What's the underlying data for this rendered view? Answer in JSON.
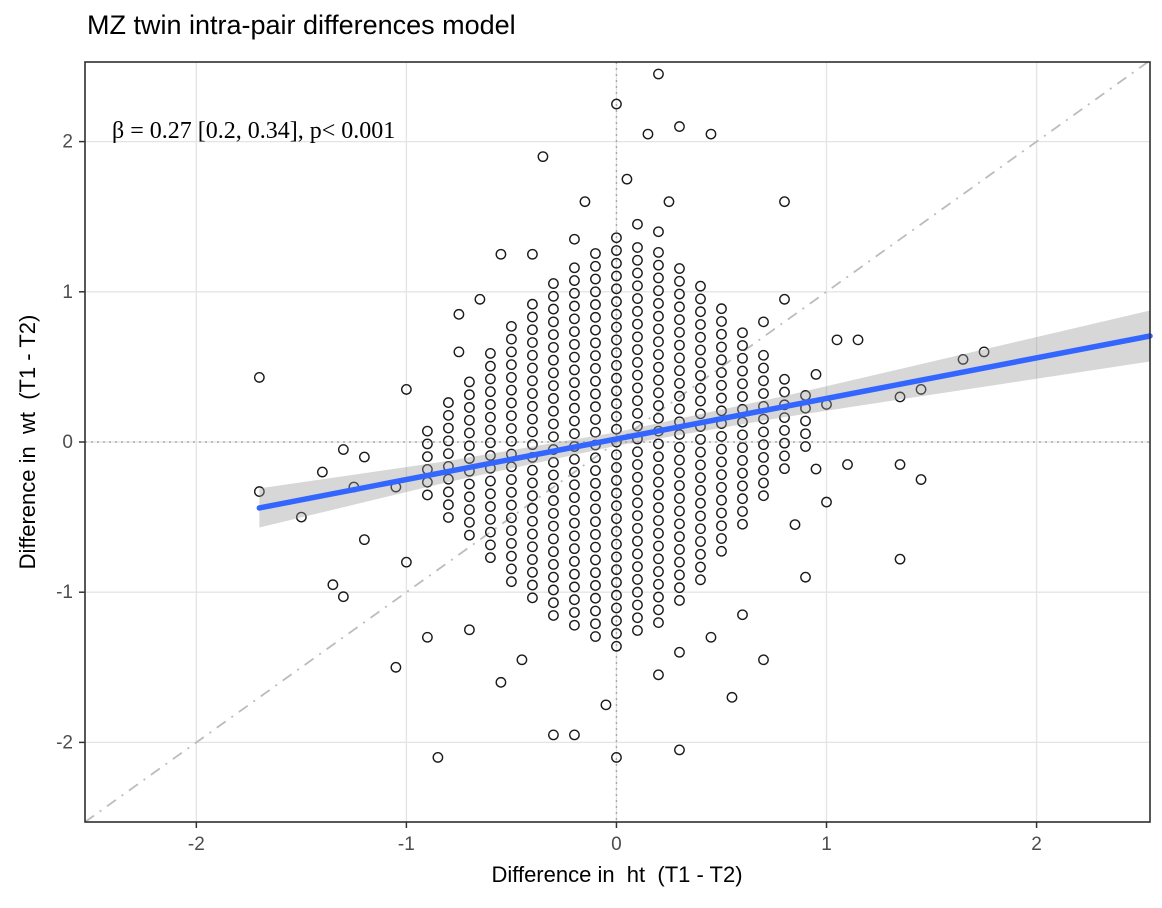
{
  "title": "MZ twin intra-pair differences model",
  "annotation": "β = 0.27 [0.2, 0.34], p< 0.001",
  "colors": {
    "regression_line": "#3366FF",
    "ribbon": "rgba(150,150,150,0.38)",
    "point_stroke": "#1a1a1a",
    "grid": "#e4e4e4",
    "zero_line": "#a9a9a9",
    "identity_line": "#bcbcbc",
    "panel_border": "#2f2f2f",
    "tick_color": "#333333",
    "tick_label": "#4d4d4d",
    "text": "#000000"
  },
  "chart_data": {
    "type": "scatter",
    "title": "MZ twin intra-pair differences model",
    "xlabel": "Difference in  ht  (T1 - T2)",
    "ylabel": "Difference in  wt  (T1 - T2)",
    "xlim": [
      -2.53,
      2.54
    ],
    "ylim": [
      -2.53,
      2.53
    ],
    "x_ticks": [
      -2,
      -1,
      0,
      1,
      2
    ],
    "y_ticks": [
      -2,
      -1,
      0,
      1,
      2
    ],
    "grid": true,
    "legend": "none",
    "annotation": "β = 0.27 [0.2, 0.34], p< 0.001",
    "zero_lines": {
      "style": "dotted",
      "x": 0,
      "y": 0
    },
    "identity_line": {
      "style": "dash-dot",
      "from": [
        -2.53,
        -2.53
      ],
      "to": [
        2.53,
        2.53
      ]
    },
    "regression": {
      "beta": 0.27,
      "ci_low": 0.2,
      "ci_high": 0.34,
      "p_value": "< 0.001",
      "slope": 0.27,
      "intercept": 0.02,
      "x_start": -1.7,
      "x_end": 2.54
    },
    "ribbon": {
      "x": [
        -1.7,
        -0.8,
        0,
        0.8,
        2.54
      ],
      "half_width": [
        0.13,
        0.07,
        0.045,
        0.07,
        0.17
      ]
    },
    "point_style": {
      "shape": "open-circle",
      "radius": 4.7
    },
    "stack_step": 0.085,
    "point_stacks": [
      {
        "x": -0.9,
        "n": 6,
        "c": -0.14
      },
      {
        "x": -0.8,
        "n": 10,
        "c": -0.12
      },
      {
        "x": -0.7,
        "n": 13,
        "c": -0.11
      },
      {
        "x": -0.6,
        "n": 17,
        "c": -0.09
      },
      {
        "x": -0.5,
        "n": 21,
        "c": -0.08
      },
      {
        "x": -0.4,
        "n": 24,
        "c": -0.06
      },
      {
        "x": -0.3,
        "n": 27,
        "c": -0.05
      },
      {
        "x": -0.2,
        "n": 29,
        "c": -0.03
      },
      {
        "x": -0.1,
        "n": 31,
        "c": -0.02
      },
      {
        "x": 0,
        "n": 33,
        "c": 0
      },
      {
        "x": 0.1,
        "n": 31,
        "c": 0.02
      },
      {
        "x": 0.2,
        "n": 30,
        "c": 0.03
      },
      {
        "x": 0.3,
        "n": 27,
        "c": 0.05
      },
      {
        "x": 0.4,
        "n": 24,
        "c": 0.06
      },
      {
        "x": 0.5,
        "n": 20,
        "c": 0.08
      },
      {
        "x": 0.6,
        "n": 16,
        "c": 0.09
      },
      {
        "x": 0.7,
        "n": 12,
        "c": 0.11
      },
      {
        "x": 0.8,
        "n": 8,
        "c": 0.12
      },
      {
        "x": 0.9,
        "n": 5,
        "c": 0.14
      }
    ],
    "extra_points": [
      [
        -1.7,
        0.43
      ],
      [
        -1.7,
        -0.33
      ],
      [
        -1.5,
        -0.5
      ],
      [
        -1.4,
        -0.2
      ],
      [
        -1.3,
        -0.05
      ],
      [
        -1.2,
        -0.1
      ],
      [
        -1.25,
        -0.3
      ],
      [
        -1.2,
        -0.65
      ],
      [
        -1.35,
        -0.95
      ],
      [
        -1.3,
        -1.03
      ],
      [
        -1.05,
        -1.5
      ],
      [
        -0.9,
        -1.3
      ],
      [
        -0.85,
        -2.1
      ],
      [
        -1.0,
        0.35
      ],
      [
        -1.0,
        -0.8
      ],
      [
        -1.05,
        -0.3
      ],
      [
        -0.35,
        1.9
      ],
      [
        0,
        2.25
      ],
      [
        0.2,
        2.45
      ],
      [
        0.15,
        2.05
      ],
      [
        0.3,
        2.1
      ],
      [
        0.45,
        2.05
      ],
      [
        0.25,
        1.6
      ],
      [
        0.8,
        1.6
      ],
      [
        -0.55,
        1.25
      ],
      [
        -0.65,
        0.95
      ],
      [
        -0.75,
        0.85
      ],
      [
        -0.75,
        0.6
      ],
      [
        -0.4,
        1.25
      ],
      [
        -0.2,
        1.35
      ],
      [
        0.1,
        1.45
      ],
      [
        0.2,
        1.4
      ],
      [
        0.05,
        1.75
      ],
      [
        -0.15,
        1.6
      ],
      [
        0.8,
        0.95
      ],
      [
        0.7,
        0.8
      ],
      [
        1.05,
        0.68
      ],
      [
        1.15,
        0.68
      ],
      [
        0.95,
        0.45
      ],
      [
        1.0,
        0.25
      ],
      [
        1.35,
        0.3
      ],
      [
        1.45,
        0.35
      ],
      [
        1.65,
        0.55
      ],
      [
        1.75,
        0.6
      ],
      [
        1.1,
        -0.15
      ],
      [
        1.35,
        -0.15
      ],
      [
        1.45,
        -0.25
      ],
      [
        1.0,
        -0.4
      ],
      [
        0.85,
        -0.55
      ],
      [
        1.35,
        -0.78
      ],
      [
        0.95,
        -0.18
      ],
      [
        0.9,
        -0.9
      ],
      [
        0.7,
        -1.45
      ],
      [
        0.55,
        -1.7
      ],
      [
        0.3,
        -2.05
      ],
      [
        0.2,
        -1.55
      ],
      [
        0.3,
        -1.4
      ],
      [
        0.45,
        -1.3
      ],
      [
        0.6,
        -1.15
      ],
      [
        -0.05,
        -1.75
      ],
      [
        0,
        -2.1
      ],
      [
        -0.2,
        -1.95
      ],
      [
        -0.3,
        -1.95
      ],
      [
        -0.55,
        -1.6
      ],
      [
        -0.7,
        -1.25
      ],
      [
        -0.45,
        -1.45
      ]
    ]
  }
}
